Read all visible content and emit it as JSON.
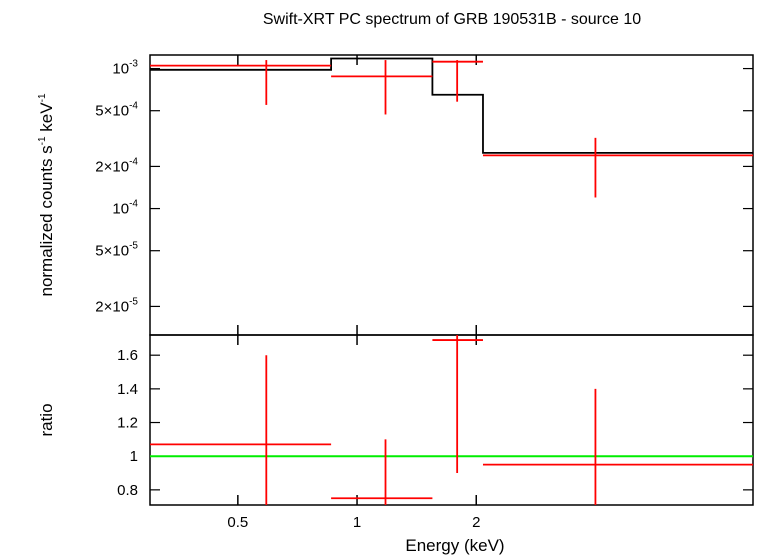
{
  "chart_data": {
    "type": "spectrum",
    "title": "Swift-XRT PC spectrum of GRB 190531B - source 10",
    "xlabel": "Energy (keV)",
    "xscale": "log",
    "xlim": [
      0.3,
      10.0
    ],
    "x_ticks": [
      {
        "value": 0.5,
        "label": "0.5"
      },
      {
        "value": 1,
        "label": "1"
      },
      {
        "value": 2,
        "label": "2"
      }
    ],
    "top_panel": {
      "ylabel": "normalized counts s",
      "ylabel_exp": "-1",
      "ylabel_mid": " keV",
      "ylabel_exp2": "-1",
      "yscale": "log",
      "ylim": [
        1.25e-05,
        0.00125
      ],
      "y_ticks": [
        {
          "value": 0.001,
          "mant": "10",
          "exp": "-3"
        },
        {
          "value": 0.0005,
          "mant": "5×10",
          "exp": "-4"
        },
        {
          "value": 0.0002,
          "mant": "2×10",
          "exp": "-4"
        },
        {
          "value": 0.0001,
          "mant": "10",
          "exp": "-4"
        },
        {
          "value": 5e-05,
          "mant": "5×10",
          "exp": "-5"
        },
        {
          "value": 2e-05,
          "mant": "2×10",
          "exp": "-5"
        }
      ],
      "data": [
        {
          "x": 0.59,
          "xlo": 0.3,
          "xhi": 0.86,
          "y": 0.00105,
          "ylo": 0.00055,
          "yhi": 0.00115
        },
        {
          "x": 1.18,
          "xlo": 0.86,
          "xhi": 1.55,
          "y": 0.00088,
          "ylo": 0.00047,
          "yhi": 0.00115
        },
        {
          "x": 1.79,
          "xlo": 1.55,
          "xhi": 2.08,
          "y": 0.00112,
          "ylo": 0.00058,
          "yhi": 0.00115
        },
        {
          "x": 4.0,
          "xlo": 2.08,
          "xhi": 10.0,
          "y": 0.00024,
          "ylo": 0.00012,
          "yhi": 0.00032
        }
      ],
      "model": [
        {
          "xlo": 0.3,
          "xhi": 0.86,
          "y": 0.00098
        },
        {
          "xlo": 0.86,
          "xhi": 1.55,
          "y": 0.00118
        },
        {
          "xlo": 1.55,
          "xhi": 2.08,
          "y": 0.00065
        },
        {
          "xlo": 2.08,
          "xhi": 10.0,
          "y": 0.00025
        }
      ]
    },
    "bottom_panel": {
      "ylabel": "ratio",
      "yscale": "linear",
      "ylim": [
        0.71,
        1.72
      ],
      "y_ticks": [
        {
          "value": 0.8,
          "label": "0.8"
        },
        {
          "value": 1.0,
          "label": "1"
        },
        {
          "value": 1.2,
          "label": "1.2"
        },
        {
          "value": 1.4,
          "label": "1.4"
        },
        {
          "value": 1.6,
          "label": "1.6"
        }
      ],
      "reference_line": 1.0,
      "data": [
        {
          "x": 0.59,
          "xlo": 0.3,
          "xhi": 0.86,
          "y": 1.07,
          "ylo": 0.71,
          "yhi": 1.6
        },
        {
          "x": 1.18,
          "xlo": 0.86,
          "xhi": 1.55,
          "y": 0.75,
          "ylo": 0.71,
          "yhi": 1.1
        },
        {
          "x": 1.79,
          "xlo": 1.55,
          "xhi": 2.08,
          "y": 1.69,
          "ylo": 0.9,
          "yhi": 1.72
        },
        {
          "x": 4.0,
          "xlo": 2.08,
          "xhi": 10.0,
          "y": 0.95,
          "ylo": 0.71,
          "yhi": 1.4
        }
      ]
    },
    "colors": {
      "data": "#ff0000",
      "model": "#000000",
      "reference": "#00ee00",
      "axes": "#000000"
    }
  }
}
